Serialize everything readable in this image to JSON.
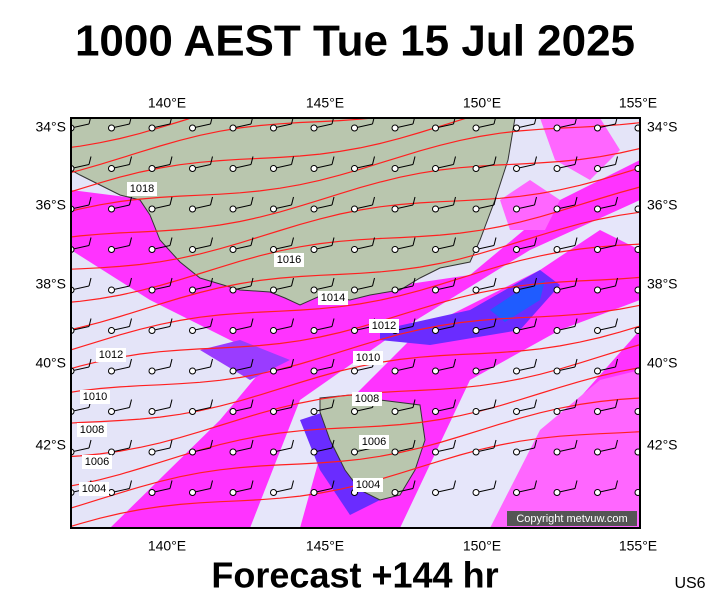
{
  "header": {
    "title": "1000 AEST Tue 15 Jul 2025"
  },
  "map": {
    "lon_labels": [
      "140°E",
      "145°E",
      "150°E",
      "155°E"
    ],
    "lat_labels": [
      "34°S",
      "36°S",
      "38°S",
      "40°S",
      "42°S"
    ],
    "isobar_labels": [
      "1018",
      "1016",
      "1014",
      "1012",
      "1012",
      "1010",
      "1010",
      "1008",
      "1008",
      "1006",
      "1006",
      "1004",
      "1004"
    ],
    "copyright": "Copyright metvuw.com"
  },
  "footer": {
    "forecast": "Forecast +144 hr",
    "code": "US6"
  }
}
